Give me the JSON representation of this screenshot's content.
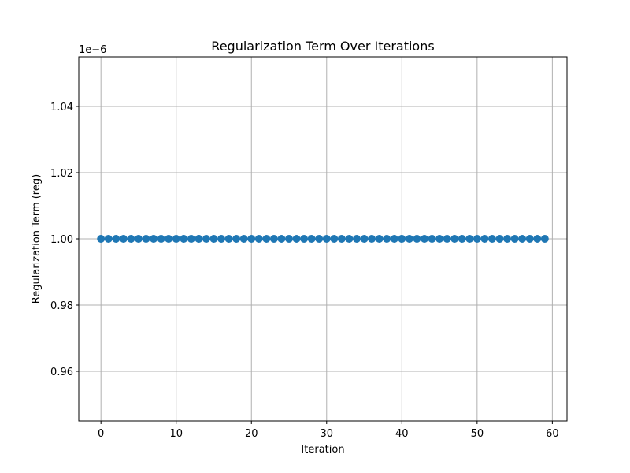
{
  "chart_data": {
    "type": "scatter",
    "title": "Regularization Term Over Iterations",
    "xlabel": "Iteration",
    "ylabel": "Regularization Term (reg)",
    "offset_text": "1e−6",
    "x_ticks": [
      "0",
      "10",
      "20",
      "30",
      "40",
      "50",
      "60"
    ],
    "y_ticks": [
      "0.96",
      "0.98",
      "1.00",
      "1.02",
      "1.04"
    ],
    "x_tick_values": [
      0,
      10,
      20,
      30,
      40,
      50,
      60
    ],
    "y_tick_values": [
      0.96,
      0.98,
      1.0,
      1.02,
      1.04
    ],
    "xlim": [
      -2.95,
      61.95
    ],
    "ylim": [
      0.945,
      1.055
    ],
    "grid": true,
    "series": [
      {
        "x": [
          0,
          1,
          2,
          3,
          4,
          5,
          6,
          7,
          8,
          9,
          10,
          11,
          12,
          13,
          14,
          15,
          16,
          17,
          18,
          19,
          20,
          21,
          22,
          23,
          24,
          25,
          26,
          27,
          28,
          29,
          30,
          31,
          32,
          33,
          34,
          35,
          36,
          37,
          38,
          39,
          40,
          41,
          42,
          43,
          44,
          45,
          46,
          47,
          48,
          49,
          50,
          51,
          52,
          53,
          54,
          55,
          56,
          57,
          58,
          59
        ],
        "y": [
          1.0,
          1.0,
          1.0,
          1.0,
          1.0,
          1.0,
          1.0,
          1.0,
          1.0,
          1.0,
          1.0,
          1.0,
          1.0,
          1.0,
          1.0,
          1.0,
          1.0,
          1.0,
          1.0,
          1.0,
          1.0,
          1.0,
          1.0,
          1.0,
          1.0,
          1.0,
          1.0,
          1.0,
          1.0,
          1.0,
          1.0,
          1.0,
          1.0,
          1.0,
          1.0,
          1.0,
          1.0,
          1.0,
          1.0,
          1.0,
          1.0,
          1.0,
          1.0,
          1.0,
          1.0,
          1.0,
          1.0,
          1.0,
          1.0,
          1.0,
          1.0,
          1.0,
          1.0,
          1.0,
          1.0,
          1.0,
          1.0,
          1.0,
          1.0,
          1.0
        ],
        "color": "#1f77b4"
      }
    ],
    "grid_color": "#b0b0b0"
  }
}
